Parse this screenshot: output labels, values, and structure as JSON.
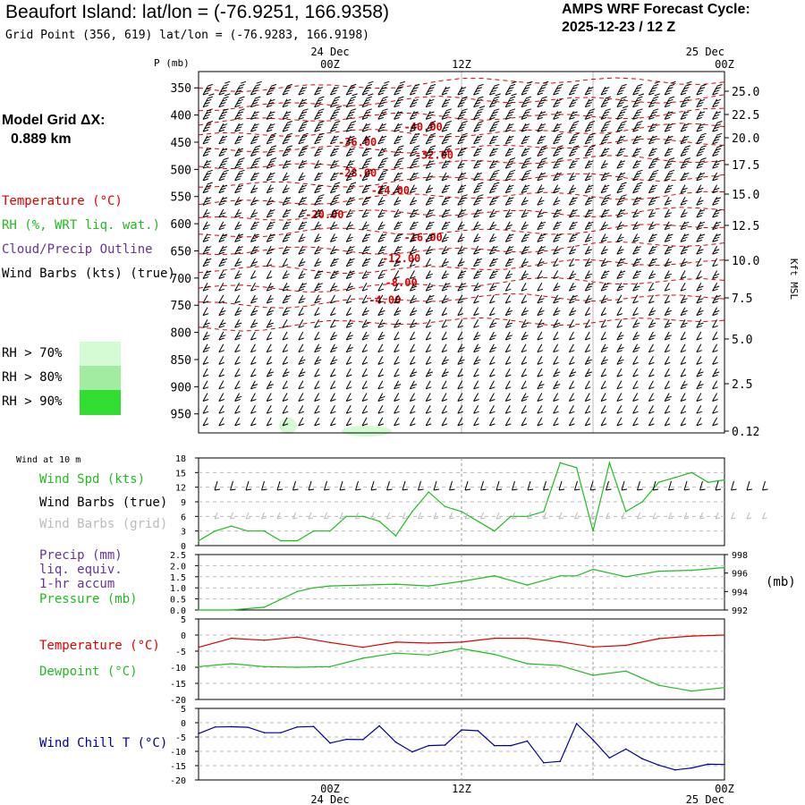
{
  "header": {
    "title": "Beaufort Island:  lat/lon = (-76.9251, 166.9358)",
    "subtitle": "Grid Point (356, 619) lat/lon = (-76.9283, 166.9198)",
    "cycle_line1": "AMPS WRF Forecast Cycle:",
    "cycle_line2": "2025-12-23 / 12  Z",
    "grid_label": "Model Grid ΔX:",
    "grid_value": "0.889 km"
  },
  "legend": {
    "temperature": "Temperature (°C)",
    "rh": "RH (%, WRT liq. wat.)",
    "cloud": "Cloud/Precip Outline",
    "wind_barbs": "Wind Barbs (kts) (true)",
    "rh70": "RH > 70%",
    "rh80": "RH > 80%",
    "rh90": "RH > 90%",
    "rh70_color": "#d4fbd4",
    "rh80_color": "#a0eca0",
    "rh90_color": "#30dd30",
    "temp_color": "#dd0000",
    "rh_color": "#22bb22",
    "cloud_color": "#663399"
  },
  "time_axis": {
    "top_dates": [
      "24 Dec",
      "25 Dec"
    ],
    "ticks": [
      "00Z",
      "12Z",
      "00Z"
    ],
    "bottom_dates": [
      "24 Dec",
      "25 Dec"
    ]
  },
  "panel_labels": {
    "wind10m": "Wind at 10 m",
    "wind_spd": "Wind Spd (kts)",
    "wind_barbs_true": "Wind Barbs (true)",
    "wind_barbs_grid": "Wind Barbs (grid)",
    "precip": "Precip (mm)",
    "precip2": "liq. equiv.",
    "precip3": "1-hr accum",
    "pressure": "Pressure (mb)",
    "pressure_unit": "(mb)",
    "temperature": "Temperature (°C)",
    "dewpoint": "Dewpoint (°C)",
    "windchill": "Wind Chill T (°C)"
  },
  "chart_data": [
    {
      "type": "line",
      "title": "Pressure-time cross section",
      "p_axis_label": "P (mb)",
      "p_ticks": [
        350,
        400,
        450,
        500,
        550,
        600,
        650,
        700,
        750,
        800,
        850,
        900,
        950
      ],
      "kft_label": "Kft MSL",
      "kft_ticks": [
        "25.0",
        "22.5",
        "20.0",
        "17.5",
        "15.0",
        "12.5",
        "10.0",
        "7.5",
        "5.0",
        "2.5",
        "0.12"
      ],
      "isotherm_labels": [
        {
          "label": "-40.00",
          "hour": 20.5,
          "p": 420
        },
        {
          "label": "-36.00",
          "hour": 14.5,
          "p": 448
        },
        {
          "label": "-32.00",
          "hour": 21.5,
          "p": 472
        },
        {
          "label": "-28.00",
          "hour": 14.5,
          "p": 505
        },
        {
          "label": "-24.00",
          "hour": 17.5,
          "p": 537
        },
        {
          "label": "-20.00",
          "hour": 11.5,
          "p": 582
        },
        {
          "label": "-16.00",
          "hour": 20.5,
          "p": 624
        },
        {
          "label": "-12.00",
          "hour": 18.5,
          "p": 662
        },
        {
          "label": "-8.00",
          "hour": 18.5,
          "p": 707
        },
        {
          "label": "-4.00",
          "hour": 17.0,
          "p": 739
        }
      ]
    },
    {
      "type": "line",
      "title": "Wind Spd (kts) at 10 m",
      "ylim": [
        0,
        18
      ],
      "yticks": [
        0,
        3,
        6,
        9,
        12,
        15,
        18
      ],
      "hours": [
        0,
        2,
        4,
        6,
        8,
        10,
        12,
        14,
        16,
        18,
        20,
        22,
        24,
        26,
        28,
        30,
        32,
        34,
        36,
        38,
        40,
        42,
        44,
        46,
        48
      ],
      "series": [
        {
          "name": "Wind Spd",
          "values": [
            1,
            3,
            4,
            3,
            3,
            1,
            1,
            3,
            3,
            6,
            6,
            5,
            2,
            7,
            11,
            8,
            7,
            5,
            3,
            6,
            6,
            7,
            17,
            16,
            3,
            17,
            7,
            9,
            13,
            14,
            15,
            13,
            13.5
          ]
        }
      ],
      "x_full": [
        0,
        1.5,
        3,
        4.5,
        6,
        7.5,
        9,
        10.5,
        12,
        13.5,
        15,
        16.5,
        18,
        19.5,
        21,
        22.5,
        24,
        25.5,
        27,
        28.5,
        30,
        31.5,
        33,
        34.5,
        36,
        37.5,
        39,
        40.5,
        42,
        43.5,
        45,
        46.5,
        48
      ]
    },
    {
      "type": "line",
      "title": "Precip / Pressure",
      "left_ylim": [
        0,
        2.5
      ],
      "left_yticks": [
        "0.0",
        "0.5",
        "1.0",
        "1.5",
        "2.0",
        "2.5"
      ],
      "right_ylim": [
        992,
        998
      ],
      "right_yticks": [
        992,
        994,
        996,
        998
      ],
      "series": [
        {
          "name": "Pressure (mb)",
          "x": [
            0,
            3,
            6,
            9,
            10.5,
            12,
            15,
            18,
            21,
            24,
            27,
            30,
            33,
            34.5,
            36,
            39,
            42,
            45,
            48
          ],
          "values": [
            992,
            992,
            992.3,
            994,
            994.4,
            994.6,
            994.7,
            994.8,
            994.6,
            995.1,
            995.7,
            994.7,
            995.7,
            995.7,
            996.4,
            995.6,
            996.2,
            996.3,
            996.6
          ]
        }
      ]
    },
    {
      "type": "line",
      "title": "Temperature / Dewpoint",
      "ylim": [
        -20,
        5
      ],
      "yticks": [
        -20,
        -15,
        -10,
        -5,
        0,
        5
      ],
      "series": [
        {
          "name": "Temperature",
          "x": [
            0,
            3,
            6,
            9,
            12,
            15,
            18,
            21,
            24,
            27,
            30,
            33,
            36,
            39,
            42,
            45,
            48
          ],
          "values": [
            -3.8,
            -1,
            -1.6,
            -0.6,
            -2.3,
            -3.8,
            -2.2,
            -2.5,
            -2.2,
            -1,
            -1,
            -2.1,
            -3.7,
            -3.2,
            -1.1,
            -0.3,
            0
          ]
        },
        {
          "name": "Dewpoint",
          "x": [
            0,
            3,
            6,
            9,
            12,
            15,
            18,
            21,
            24,
            27,
            30,
            33,
            36,
            39,
            42,
            45,
            48
          ],
          "values": [
            -9.8,
            -8.9,
            -9.8,
            -10,
            -9.8,
            -7.2,
            -5.6,
            -6.2,
            -4.2,
            -6,
            -8.9,
            -9.5,
            -12.5,
            -11.2,
            -15.6,
            -17.4,
            -16.3
          ]
        }
      ]
    },
    {
      "type": "line",
      "title": "Wind Chill T (°C)",
      "ylim": [
        -20,
        5
      ],
      "yticks": [
        -20,
        -15,
        -10,
        -5,
        0,
        5
      ],
      "series": [
        {
          "name": "Wind Chill",
          "x": [
            0,
            1.5,
            3,
            4.5,
            6,
            7.5,
            9,
            10.5,
            12,
            13.5,
            15,
            16.5,
            18,
            19.5,
            21,
            22.5,
            24,
            25.5,
            27,
            28.5,
            30,
            31.5,
            33,
            34.5,
            36,
            37.5,
            39,
            40.5,
            42,
            43.5,
            45,
            46.5,
            48
          ],
          "values": [
            -3.8,
            -1.5,
            -1.4,
            -1.6,
            -3.5,
            -3.5,
            -1.5,
            -1.3,
            -7.1,
            -5.8,
            -5.9,
            -1.1,
            -6.8,
            -10.2,
            -8,
            -7.8,
            -2.5,
            -2.8,
            -8,
            -8,
            -6.4,
            -14,
            -13.5,
            -0.3,
            -6,
            -12.3,
            -9.2,
            -12.6,
            -14.8,
            -16.5,
            -15.8,
            -14.5,
            -14.6
          ]
        }
      ]
    }
  ]
}
